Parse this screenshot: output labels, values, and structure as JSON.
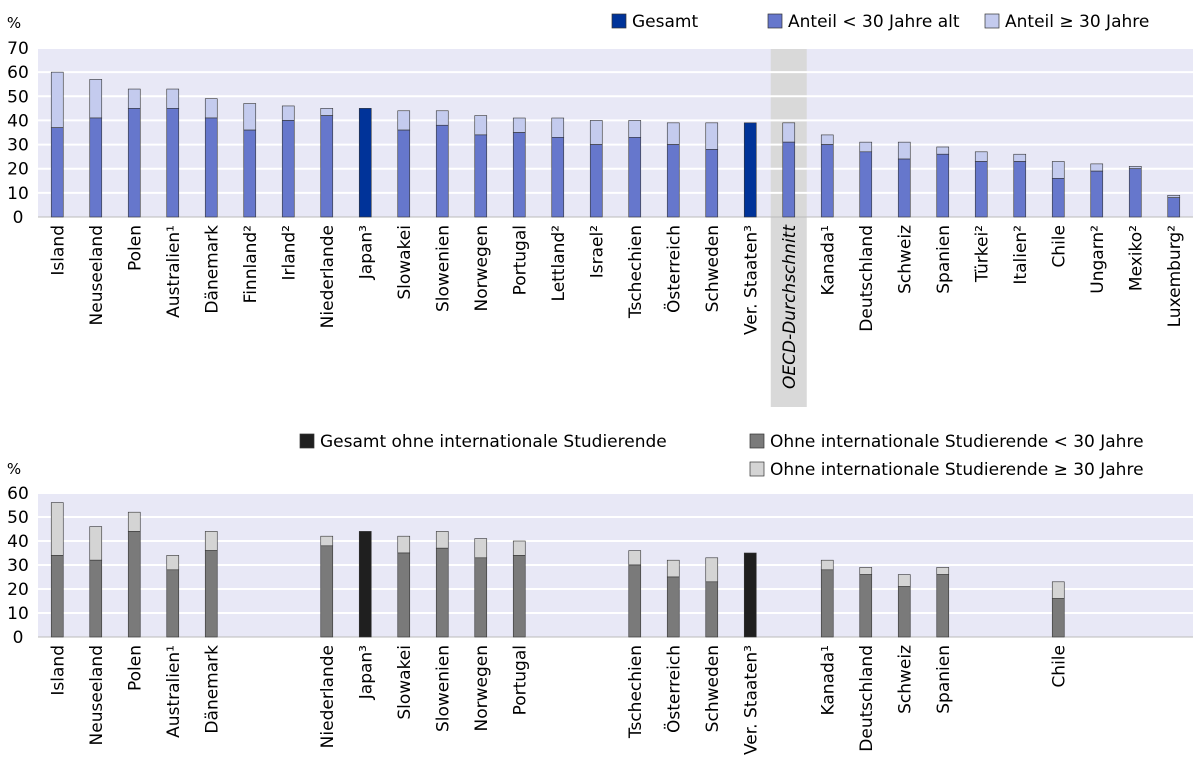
{
  "chart_data": [
    {
      "type": "bar",
      "stacked": true,
      "ylabel": "%",
      "ylim": [
        0,
        70
      ],
      "yticks": [
        0,
        10,
        20,
        30,
        40,
        50,
        60,
        70
      ],
      "grid": true,
      "legend_position": "top-right",
      "legend": [
        "Gesamt",
        "Anteil < 30 Jahre alt",
        "Anteil ≥ 30 Jahre"
      ],
      "highlight_label": "OECD-Durchschnitt",
      "categories": [
        "Island",
        "Neuseeland",
        "Polen",
        "Australien¹",
        "Dänemark",
        "Finnland²",
        "Irland²",
        "Niederlande",
        "Japan³",
        "Slowakei",
        "Slowenien",
        "Norwegen",
        "Portugal",
        "Lettland²",
        "Israel²",
        "Tschechien",
        "Österreich",
        "Schweden",
        "Ver. Staaten³",
        "OECD-Durchschnitt",
        "Kanada¹",
        "Deutschland",
        "Schweiz",
        "Spanien",
        "Türkei²",
        "Italien²",
        "Chile",
        "Ungarn²",
        "Mexiko²",
        "Luxemburg²"
      ],
      "totals": [
        60,
        57,
        53,
        53,
        49,
        47,
        46,
        45,
        45,
        44,
        44,
        42,
        41,
        41,
        40,
        40,
        39,
        39,
        39,
        39,
        34,
        31,
        31,
        29,
        27,
        26,
        23,
        22,
        21,
        9
      ],
      "under30": [
        37,
        41,
        45,
        45,
        41,
        36,
        40,
        42,
        null,
        36,
        38,
        34,
        35,
        33,
        30,
        33,
        30,
        28,
        null,
        31,
        30,
        27,
        24,
        26,
        23,
        23,
        16,
        19,
        20,
        8
      ],
      "overall_only": [
        false,
        false,
        false,
        false,
        false,
        false,
        false,
        false,
        true,
        false,
        false,
        false,
        false,
        false,
        false,
        false,
        false,
        false,
        true,
        false,
        false,
        false,
        false,
        false,
        false,
        false,
        false,
        false,
        false,
        false
      ]
    },
    {
      "type": "bar",
      "stacked": true,
      "ylabel": "%",
      "ylim": [
        0,
        60
      ],
      "yticks": [
        0,
        10,
        20,
        30,
        40,
        50,
        60
      ],
      "grid": true,
      "legend_position": "top-right",
      "legend": [
        "Gesamt ohne internationale Studierende",
        "Ohne internationale Studierende < 30 Jahre",
        "Ohne internationale Studierende ≥ 30 Jahre"
      ],
      "categories": [
        "Island",
        "Neuseeland",
        "Polen",
        "Australien¹",
        "Dänemark",
        "Finnland²",
        "Irland²",
        "Niederlande",
        "Japan³",
        "Slowakei",
        "Slowenien",
        "Norwegen",
        "Portugal",
        "Lettland²",
        "Israel²",
        "Tschechien",
        "Österreich",
        "Schweden",
        "Ver. Staaten³",
        "OECD-Durchschnitt",
        "Kanada¹",
        "Deutschland",
        "Schweiz",
        "Spanien",
        "Türkei²",
        "Italien²",
        "Chile",
        "Ungarn²",
        "Mexiko²",
        "Luxemburg²"
      ],
      "totals": [
        56,
        46,
        52,
        34,
        44,
        null,
        null,
        42,
        44,
        42,
        44,
        41,
        40,
        null,
        null,
        36,
        32,
        33,
        35,
        null,
        32,
        29,
        26,
        29,
        null,
        null,
        23,
        null,
        null,
        null
      ],
      "under30": [
        34,
        32,
        44,
        28,
        36,
        null,
        null,
        38,
        null,
        35,
        37,
        33,
        34,
        null,
        null,
        30,
        25,
        23,
        null,
        null,
        28,
        26,
        21,
        26,
        null,
        null,
        16,
        null,
        null,
        null
      ],
      "overall_only": [
        false,
        false,
        false,
        false,
        false,
        false,
        false,
        false,
        true,
        false,
        false,
        false,
        false,
        false,
        false,
        false,
        false,
        false,
        true,
        false,
        false,
        false,
        false,
        false,
        false,
        false,
        false,
        false,
        false,
        false
      ]
    }
  ],
  "colors": {
    "c1_total": "#003399",
    "c1_under": "#6677cc",
    "c1_over": "#c4cbee",
    "c2_total": "#1f1f1f",
    "c2_under": "#7a7a7a",
    "c2_over": "#d4d4d4",
    "band": "#e8e8f6",
    "grid": "#ffffff",
    "highlight": "#d9d9d9",
    "bar_edge": "#333333"
  }
}
